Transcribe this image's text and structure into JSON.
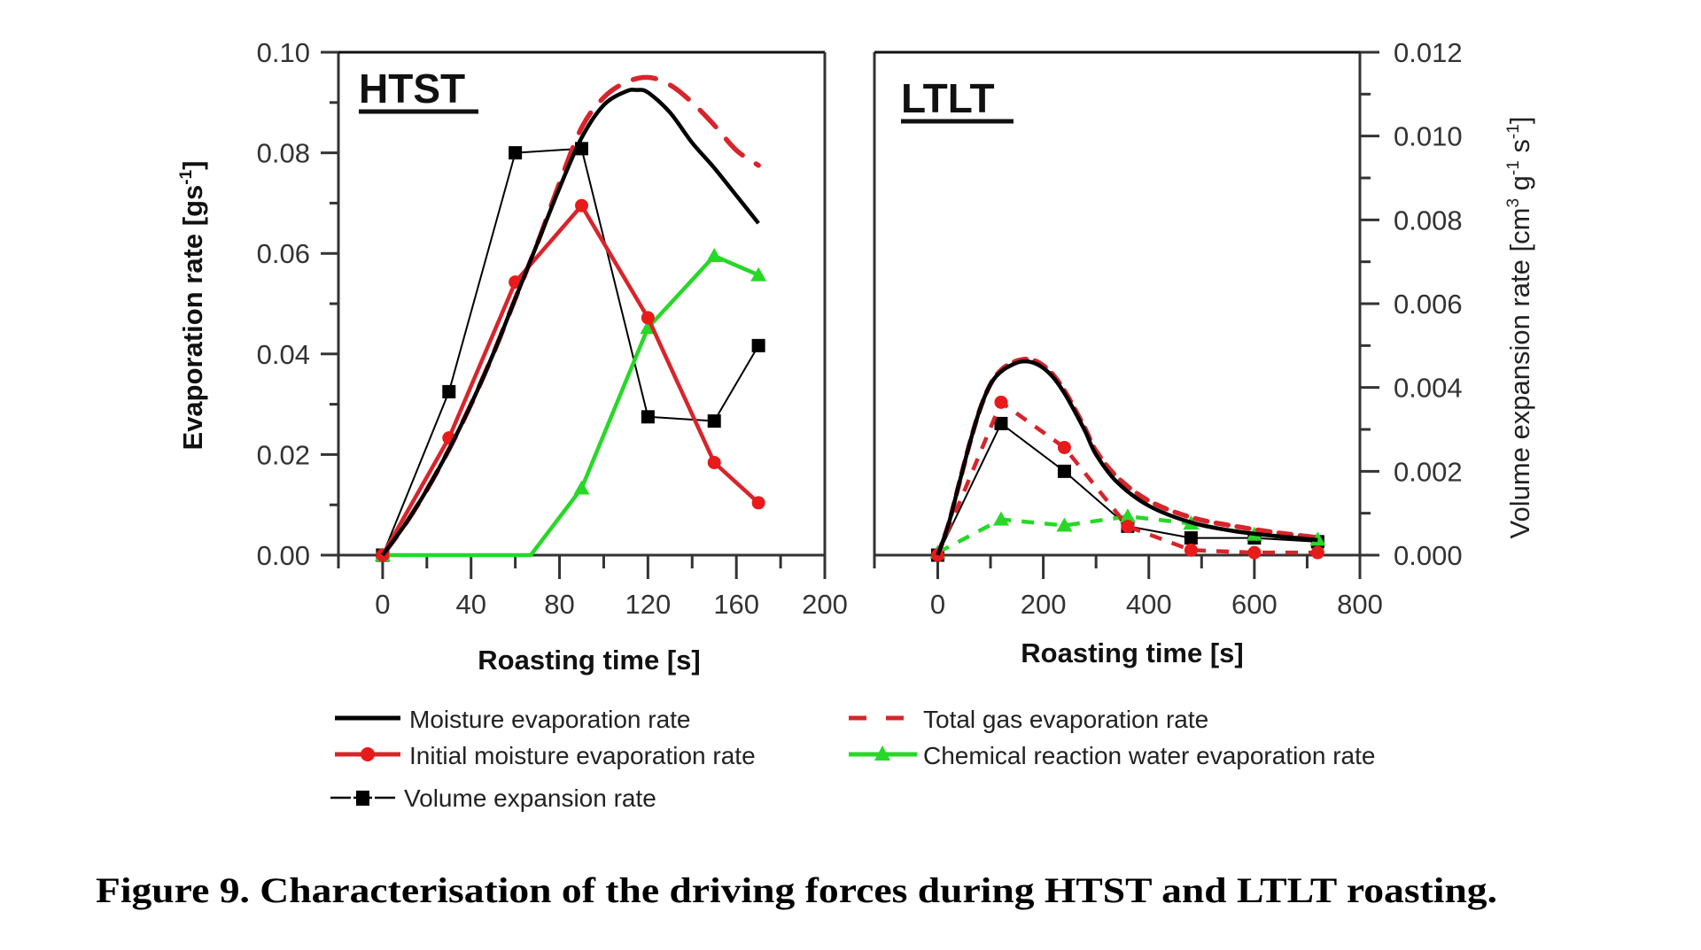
{
  "chart_data": [
    {
      "type": "line",
      "panel": "HTST",
      "title": "HTST",
      "xlabel": "Roasting time [s]",
      "ylabel": "Evaporation rate [gs-1]",
      "ylabel_parts": {
        "main": "Evaporation rate [gs",
        "sup": "-1",
        "end": "]"
      },
      "xlim": [
        -20,
        200
      ],
      "ylim": [
        0,
        0.1
      ],
      "y2lim": [
        0,
        0.012
      ],
      "xticks": [
        0,
        40,
        80,
        120,
        160,
        200
      ],
      "xtick_labels": [
        "0",
        "40",
        "80",
        "120",
        "160",
        "200"
      ],
      "x_minor": [
        -20,
        20,
        60,
        100,
        140,
        180
      ],
      "yticks": [
        0,
        0.02,
        0.04,
        0.06,
        0.08,
        0.1
      ],
      "ytick_labels": [
        "0.00",
        "0.02",
        "0.04",
        "0.06",
        "0.08",
        "0.10"
      ],
      "y_minor": [
        0.01,
        0.03,
        0.05,
        0.07,
        0.09
      ],
      "grid": false,
      "series": [
        {
          "name": "Moisture evaporation rate",
          "style": "solid-curve",
          "axis": "left",
          "x": [
            0,
            10,
            20,
            30,
            40,
            50,
            60,
            70,
            80,
            90,
            100,
            110,
            115,
            120,
            130,
            140,
            150,
            160,
            170
          ],
          "y": [
            0.0,
            0.006,
            0.013,
            0.021,
            0.03,
            0.04,
            0.051,
            0.062,
            0.073,
            0.083,
            0.0895,
            0.0922,
            0.0925,
            0.092,
            0.088,
            0.082,
            0.077,
            0.0715,
            0.066
          ]
        },
        {
          "name": "Total gas evaporation rate",
          "style": "dashed-curve",
          "axis": "left",
          "x": [
            0,
            10,
            20,
            30,
            40,
            50,
            60,
            70,
            80,
            90,
            100,
            110,
            120,
            130,
            140,
            150,
            160,
            170
          ],
          "y": [
            0.0,
            0.006,
            0.013,
            0.021,
            0.03,
            0.04,
            0.051,
            0.062,
            0.074,
            0.085,
            0.091,
            0.094,
            0.095,
            0.0935,
            0.09,
            0.0855,
            0.0805,
            0.0775
          ]
        },
        {
          "name": "Initial moisture evaporation rate",
          "style": "line-circle",
          "axis": "left",
          "x": [
            0,
            30,
            60,
            90,
            120,
            150,
            170
          ],
          "y": [
            0.0,
            0.0233,
            0.0543,
            0.0695,
            0.0472,
            0.0184,
            0.0104
          ]
        },
        {
          "name": "Chemical reaction water evaporation rate",
          "style": "line-triangle",
          "axis": "left",
          "x": [
            0,
            67,
            90,
            120,
            150,
            170
          ],
          "y": [
            0.0,
            0.0,
            0.0133,
            0.0452,
            0.0595,
            0.0557
          ],
          "marker_index": [
            0,
            2,
            3,
            4,
            5
          ]
        },
        {
          "name": "Volume expansion rate",
          "style": "thin-line-square",
          "axis": "right",
          "x": [
            0,
            30,
            60,
            90,
            120,
            150,
            170
          ],
          "y": [
            0.0,
            0.0039,
            0.0096,
            0.0097,
            0.0033,
            0.0032,
            0.005
          ]
        }
      ]
    },
    {
      "type": "line",
      "panel": "LTLT",
      "title": "LTLT",
      "xlabel": "Roasting time [s]",
      "ylabel": "Volume expansion rate [cm3 g-1 s-1]",
      "y2label_parts": {
        "main": "Volume expansion rate [cm",
        "sup1": "3",
        "mid1": " g",
        "sup2": "-1",
        "mid2": " s",
        "sup3": "-1",
        "end": "]"
      },
      "xlim": [
        -120,
        800
      ],
      "ylim": [
        0,
        0.1
      ],
      "y2lim": [
        0,
        0.012
      ],
      "xticks": [
        0,
        200,
        400,
        600,
        800
      ],
      "xtick_labels": [
        "0",
        "200",
        "400",
        "600",
        "800"
      ],
      "x_minor": [
        -120,
        100,
        300,
        500,
        700
      ],
      "y2ticks": [
        0,
        0.002,
        0.004,
        0.006,
        0.008,
        0.01,
        0.012
      ],
      "y2tick_labels": [
        "0.000",
        "0.002",
        "0.004",
        "0.006",
        "0.008",
        "0.010",
        "0.012"
      ],
      "y2_minor": [
        0.001,
        0.003,
        0.005,
        0.007,
        0.009,
        0.011
      ],
      "grid": false,
      "series": [
        {
          "name": "Moisture evaporation rate",
          "style": "solid-curve",
          "axis": "left",
          "x": [
            0,
            20,
            40,
            60,
            80,
            100,
            120,
            140,
            160,
            180,
            200,
            220,
            240,
            260,
            280,
            300,
            340,
            400,
            480,
            560,
            640,
            720
          ],
          "y": [
            0.0,
            0.006,
            0.014,
            0.022,
            0.029,
            0.034,
            0.0365,
            0.0378,
            0.0385,
            0.0383,
            0.0372,
            0.0352,
            0.0322,
            0.0285,
            0.0245,
            0.02,
            0.0145,
            0.0098,
            0.0065,
            0.0048,
            0.0038,
            0.003
          ]
        },
        {
          "name": "Total gas evaporation rate",
          "style": "dashed-curve",
          "axis": "left",
          "x": [
            0,
            20,
            40,
            60,
            80,
            100,
            120,
            140,
            160,
            180,
            200,
            220,
            240,
            260,
            280,
            300,
            340,
            400,
            480,
            560,
            640,
            720
          ],
          "y": [
            0.0,
            0.006,
            0.014,
            0.022,
            0.029,
            0.034,
            0.0368,
            0.0382,
            0.0389,
            0.0388,
            0.0377,
            0.0357,
            0.0327,
            0.029,
            0.025,
            0.0207,
            0.0155,
            0.0108,
            0.0075,
            0.0058,
            0.0045,
            0.0035
          ]
        },
        {
          "name": "Initial moisture evaporation rate",
          "style": "dashed-circle",
          "axis": "left",
          "x": [
            0,
            120,
            240,
            360,
            480,
            600,
            720
          ],
          "y": [
            0.0,
            0.0304,
            0.0214,
            0.0057,
            0.001,
            0.0005,
            0.0005
          ]
        },
        {
          "name": "Chemical reaction water evaporation rate",
          "style": "dashed-triangle",
          "axis": "left",
          "x": [
            0,
            120,
            240,
            360,
            480,
            600,
            720
          ],
          "y": [
            0.0005,
            0.0071,
            0.0059,
            0.0077,
            0.0063,
            0.0041,
            0.0031
          ]
        },
        {
          "name": "Volume expansion rate",
          "style": "thin-line-square",
          "axis": "right",
          "x": [
            0,
            120,
            240,
            360,
            480,
            600,
            720
          ],
          "y": [
            0.0,
            0.00314,
            0.002,
            0.00069,
            0.00041,
            0.00041,
            0.00032
          ]
        }
      ]
    }
  ],
  "legend": {
    "placement": "bottom",
    "items": [
      {
        "label": "Moisture evaporation rate",
        "style": "solid",
        "color": "#000000"
      },
      {
        "label": "Total gas evaporation rate",
        "style": "dashed",
        "color": "#d8242b"
      },
      {
        "label": "Initial moisture evaporation rate",
        "style": "line-circle",
        "color": "#d8242b"
      },
      {
        "label": "Chemical reaction water evaporation rate",
        "style": "line-triangle",
        "color": "#27d827"
      },
      {
        "label": "Volume expansion rate",
        "style": "line-square",
        "color": "#000000"
      }
    ]
  },
  "colors": {
    "black": "#000000",
    "red": "#d8242b",
    "green": "#27d827",
    "axis": "#333333"
  },
  "caption": "Figure 9. Characterisation of the driving forces during HTST and LTLT roasting."
}
